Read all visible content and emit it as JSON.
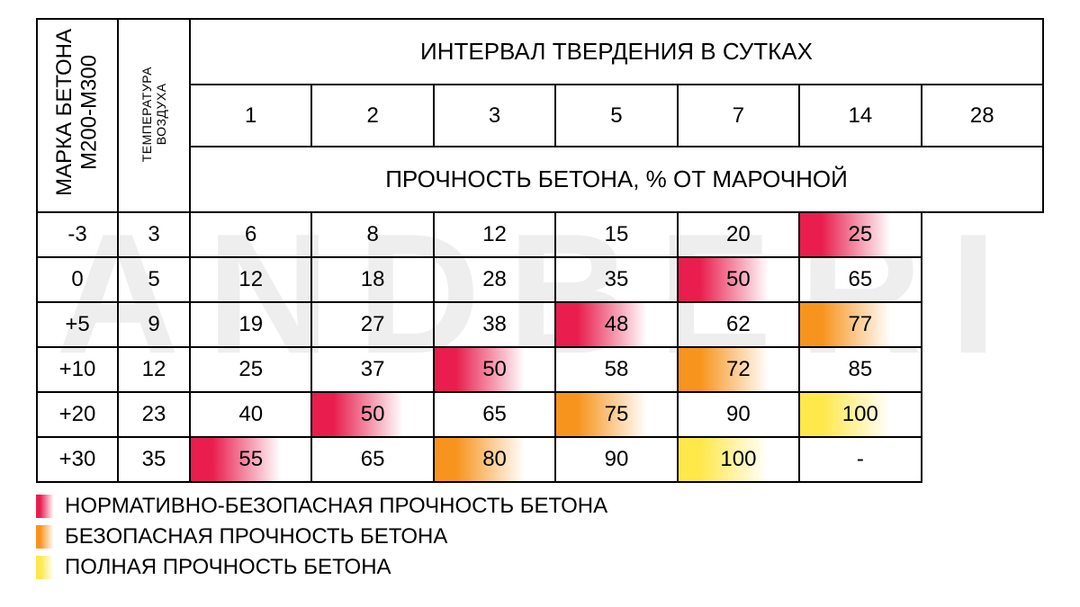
{
  "watermark": "ANDBERI",
  "headers": {
    "brand_line1": "МАРКА БЕТОНА",
    "brand_line2": "M200-M300",
    "temp_line1": "ТЕМПЕРАТУРА",
    "temp_line2": "ВОЗДУХА",
    "interval_title": "ИНТЕРВАЛ ТВЕРДЕНИЯ В СУТКАХ",
    "days": [
      "1",
      "2",
      "3",
      "5",
      "7",
      "14",
      "28"
    ],
    "strength_title": "ПРОЧНОСТЬ БЕТОНА, % ОТ МАРОЧНОЙ"
  },
  "colors": {
    "red": "#e91e4e",
    "orange": "#f7941d",
    "yellow": "#ffe84a",
    "white": "#ffffff",
    "border": "#000000",
    "text": "#000000",
    "watermark": "#eeeeee"
  },
  "font": {
    "family": "Arial",
    "cell_size_pt": 18,
    "header_size_pt": 20
  },
  "rows": [
    {
      "temp": "-3",
      "cells": [
        {
          "v": "3"
        },
        {
          "v": "6"
        },
        {
          "v": "8"
        },
        {
          "v": "12"
        },
        {
          "v": "15"
        },
        {
          "v": "20"
        },
        {
          "v": "25",
          "hl": "red"
        }
      ]
    },
    {
      "temp": "0",
      "cells": [
        {
          "v": "5"
        },
        {
          "v": "12"
        },
        {
          "v": "18"
        },
        {
          "v": "28"
        },
        {
          "v": "35"
        },
        {
          "v": "50",
          "hl": "red"
        },
        {
          "v": "65"
        }
      ]
    },
    {
      "temp": "+5",
      "cells": [
        {
          "v": "9"
        },
        {
          "v": "19"
        },
        {
          "v": "27"
        },
        {
          "v": "38"
        },
        {
          "v": "48",
          "hl": "red"
        },
        {
          "v": "62"
        },
        {
          "v": "77",
          "hl": "orange"
        }
      ]
    },
    {
      "temp": "+10",
      "cells": [
        {
          "v": "12"
        },
        {
          "v": "25"
        },
        {
          "v": "37"
        },
        {
          "v": "50",
          "hl": "red"
        },
        {
          "v": "58"
        },
        {
          "v": "72",
          "hl": "orange"
        },
        {
          "v": "85"
        }
      ]
    },
    {
      "temp": "+20",
      "cells": [
        {
          "v": "23"
        },
        {
          "v": "40"
        },
        {
          "v": "50",
          "hl": "red"
        },
        {
          "v": "65"
        },
        {
          "v": "75",
          "hl": "orange"
        },
        {
          "v": "90"
        },
        {
          "v": "100",
          "hl": "yellow"
        }
      ]
    },
    {
      "temp": "+30",
      "cells": [
        {
          "v": "35"
        },
        {
          "v": "55",
          "hl": "red"
        },
        {
          "v": "65"
        },
        {
          "v": "80",
          "hl": "orange"
        },
        {
          "v": "90"
        },
        {
          "v": "100",
          "hl": "yellow"
        },
        {
          "v": "-"
        }
      ]
    }
  ],
  "legend": [
    {
      "color": "red",
      "label": "НОРМАТИВНО-БЕЗОПАСНАЯ ПРОЧНОСТЬ БЕТОНА"
    },
    {
      "color": "orange",
      "label": "БЕЗОПАСНАЯ ПРОЧНОСТЬ БЕТОНА"
    },
    {
      "color": "yellow",
      "label": "ПОЛНАЯ ПРОЧНОСТЬ БЕТОНА"
    }
  ]
}
